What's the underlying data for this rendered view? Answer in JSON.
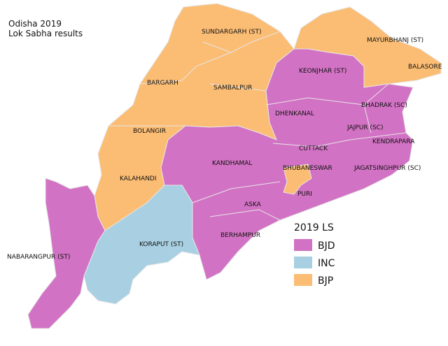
{
  "title": [
    "Odisha 2019",
    "Lok Sabha results"
  ],
  "regions": [
    {
      "label": "SUNDARGARH (ST)"
    },
    {
      "label": "MAYURBHANJ (ST)"
    },
    {
      "label": "BALASORE"
    },
    {
      "label": "KEONJHAR (ST)"
    },
    {
      "label": "BARGARH"
    },
    {
      "label": "SAMBALPUR"
    },
    {
      "label": "BHADRAK (SC)"
    },
    {
      "label": "DHENKANAL"
    },
    {
      "label": "JAJPUR (SC)"
    },
    {
      "label": "BOLANGIR"
    },
    {
      "label": "KENDRAPARA"
    },
    {
      "label": "CUTTACK"
    },
    {
      "label": "KANDHAMAL"
    },
    {
      "label": "BHUBANESWAR"
    },
    {
      "label": "JAGATSINGHPUR (SC)"
    },
    {
      "label": "KALAHANDI"
    },
    {
      "label": "PURI"
    },
    {
      "label": "ASKA"
    },
    {
      "label": "KORAPUT (ST)"
    },
    {
      "label": "BERHAMPUR"
    },
    {
      "label": "NABARANGPUR (ST)"
    }
  ],
  "legend": {
    "title": "2019 LS",
    "entries": [
      {
        "label": "BJD",
        "color": "#d272c4"
      },
      {
        "label": "INC",
        "color": "#a8d0e2"
      },
      {
        "label": "BJP",
        "color": "#fbbd74"
      }
    ]
  }
}
